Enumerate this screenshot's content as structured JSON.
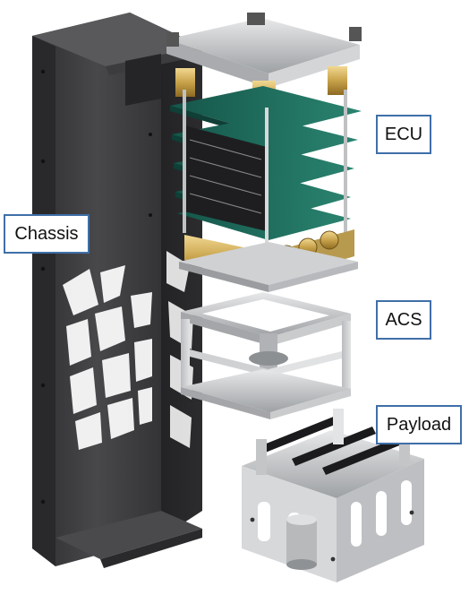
{
  "labels": {
    "ecu": "ECU",
    "chassis": "Chassis",
    "acs": "ACS",
    "payload": "Payload"
  },
  "colors": {
    "label_border": "#3f6fa8",
    "chassis": "#3a3a3c",
    "pcb": "#1f6b5a",
    "aluminum": "#c9cbcd",
    "brass": "#c8a24a"
  }
}
